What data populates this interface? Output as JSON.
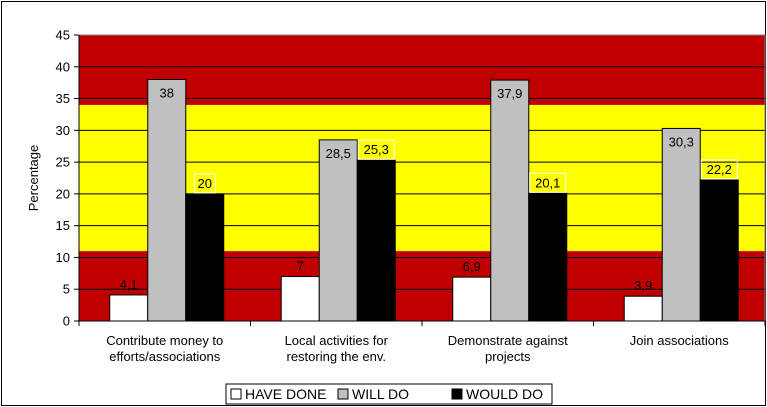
{
  "chart_data": {
    "type": "bar",
    "title": "",
    "xlabel": "",
    "ylabel": "Percentage",
    "ylim": [
      0,
      45
    ],
    "yticks": [
      "0",
      "5",
      "10",
      "15",
      "20",
      "25",
      "30",
      "35",
      "40",
      "45"
    ],
    "categories": [
      [
        "Contribute money to",
        "efforts/associations"
      ],
      [
        "Local activities for",
        "restoring the env."
      ],
      [
        "Demonstrate against",
        "projects"
      ],
      [
        "Join associations"
      ]
    ],
    "series": [
      {
        "name": "HAVE DONE",
        "color": "#ffffff",
        "values": [
          4.1,
          7,
          6.9,
          3.9
        ],
        "labels": [
          "4,1",
          "7",
          "6,9",
          "3,9"
        ]
      },
      {
        "name": "WILL DO",
        "color": "#c0c0c0",
        "values": [
          38,
          28.5,
          37.9,
          30.3
        ],
        "labels": [
          "38",
          "28,5",
          "37,9",
          "30,3"
        ]
      },
      {
        "name": "WOULD DO",
        "color": "#000000",
        "values": [
          20,
          25.3,
          20.1,
          22.2
        ],
        "labels": [
          "20",
          "25,3",
          "20,1",
          "22,2"
        ]
      }
    ],
    "background_bands": [
      {
        "from": 0,
        "to": 11,
        "color": "#c00000"
      },
      {
        "from": 11,
        "to": 34,
        "color": "#ffff00"
      },
      {
        "from": 34,
        "to": 45,
        "color": "#c00000"
      }
    ],
    "grid": true,
    "legend_position": "bottom"
  }
}
